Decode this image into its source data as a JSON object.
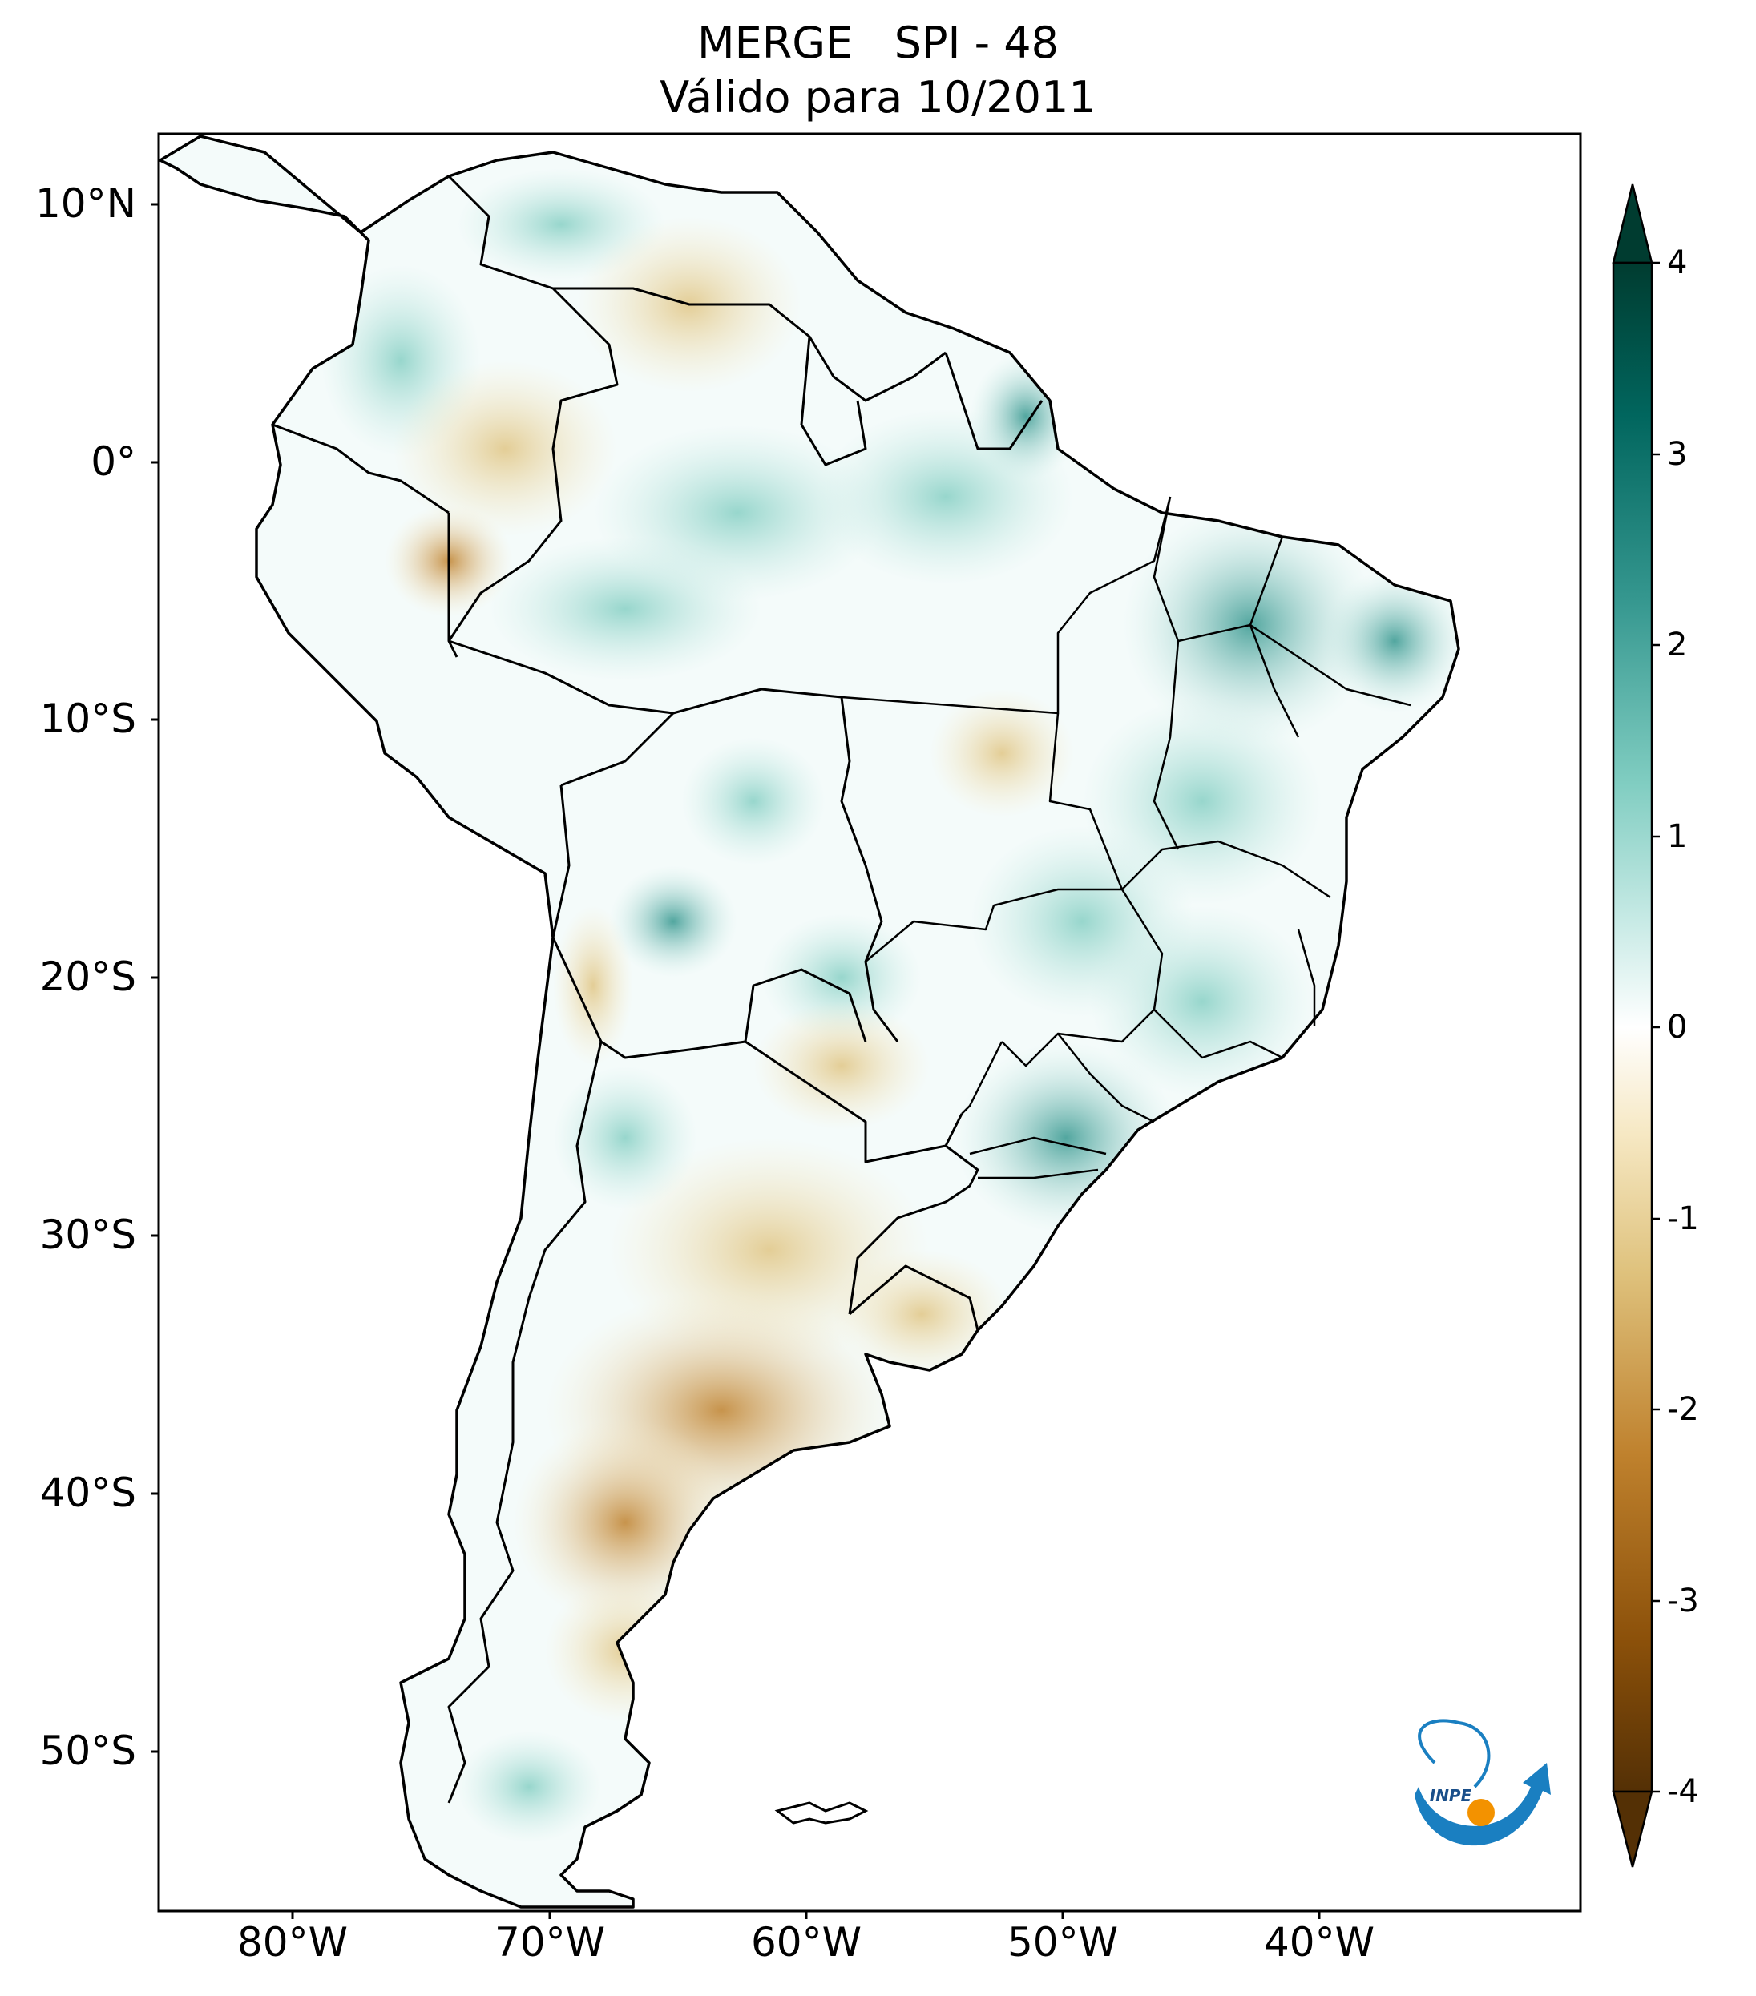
{
  "title": {
    "line1": "MERGE   SPI - 48",
    "line2": "Válido para 10/2011"
  },
  "map": {
    "lat_labels": [
      "10°N",
      "0°",
      "10°S",
      "20°S",
      "30°S",
      "40°S",
      "50°S"
    ],
    "lon_labels": [
      "80°W",
      "70°W",
      "60°W",
      "50°W",
      "40°W"
    ]
  },
  "colorbar": {
    "ticks": [
      "4",
      "3",
      "2",
      "1",
      "0",
      "-1",
      "-2",
      "-3",
      "-4"
    ],
    "range": [
      -4,
      4
    ],
    "extend": "both",
    "colors": {
      "dry_extreme": "#543005",
      "dry_strong": "#8c510a",
      "dry_moderate": "#bf812d",
      "dry_mild": "#dfc27d",
      "dry_light": "#f6e8c3",
      "neutral": "#ffffff",
      "wet_light": "#c7eae5",
      "wet_mild": "#80cdc1",
      "wet_moderate": "#35978f",
      "wet_strong": "#01665e",
      "wet_extreme": "#003c30"
    }
  },
  "logo": {
    "text": "INPE",
    "colors": {
      "arc": "#1a7fc1",
      "dot": "#f39200"
    }
  }
}
